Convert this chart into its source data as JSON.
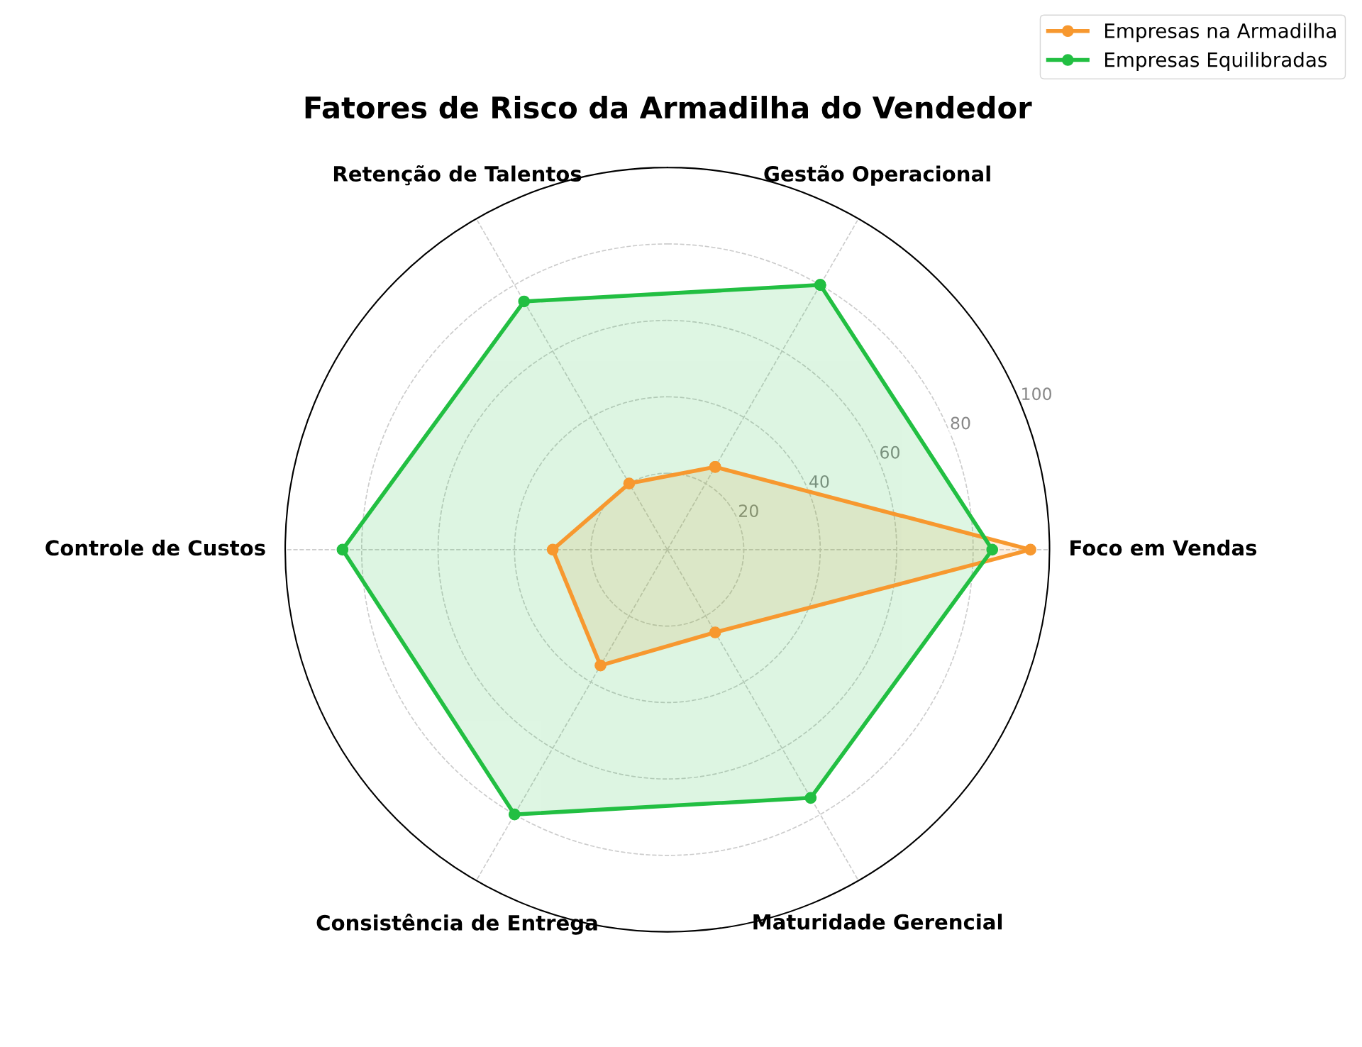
{
  "chart_data": {
    "type": "radar",
    "title": "Fatores de Risco da Armadilha do Vendedor",
    "categories": [
      "Gestão Operacional",
      "Foco em Vendas",
      "Maturidade Gerencial",
      "Consistência de Entrega",
      "Controle de Custos",
      "Retenção de Talentos"
    ],
    "series": [
      {
        "name": "Empresas na Armadilha",
        "color": "#f7982f",
        "values": [
          25,
          95,
          25,
          35,
          30,
          20
        ]
      },
      {
        "name": "Empresas Equilibradas",
        "color": "#22bf42",
        "values": [
          80,
          85,
          75,
          80,
          85,
          75
        ]
      }
    ],
    "ylim": [
      0,
      100
    ],
    "yticks": [
      20,
      40,
      60,
      80,
      100
    ],
    "grid": true,
    "legend": "top right",
    "marker": "circle",
    "line_style": "solid"
  }
}
